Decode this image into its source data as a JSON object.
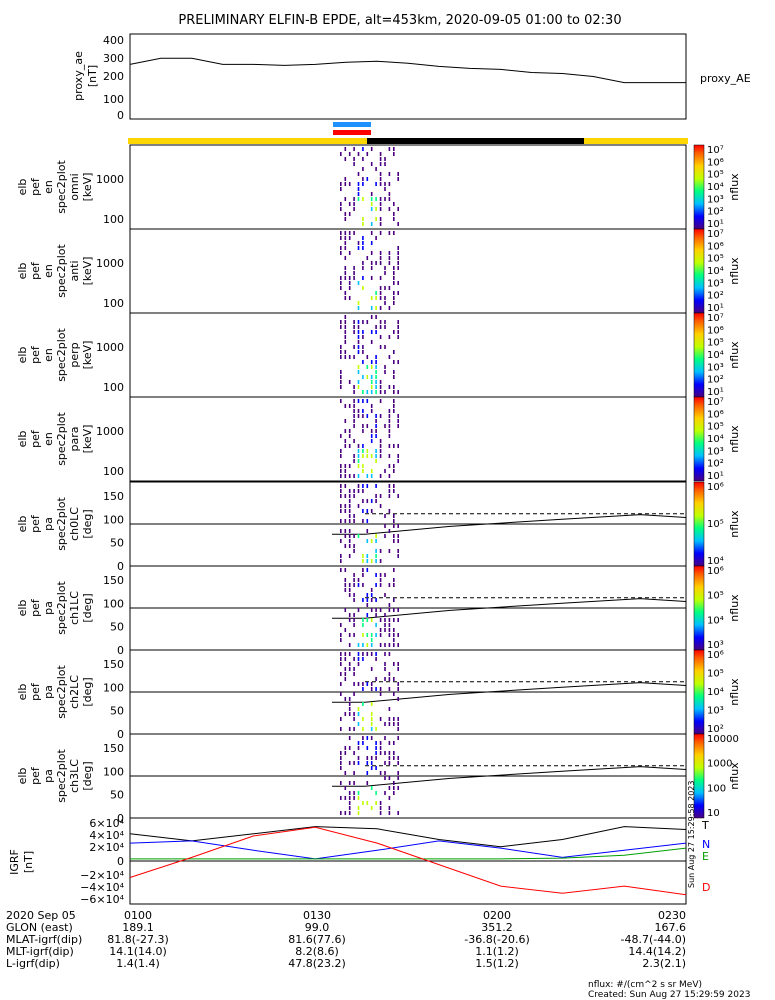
{
  "title": "PRELIMINARY ELFIN-B EPDE, alt=453km, 2020-09-05 01:00 to 02:30",
  "panels": [
    {
      "ylabel": [
        "proxy_ae",
        "[nT]"
      ],
      "ticks": [
        "400",
        "300",
        "200",
        "100",
        "0"
      ],
      "right_label": "proxy_AE"
    },
    {
      "ylabel": [
        "elb",
        "pef",
        "en",
        "spec2plot",
        "omni",
        "[keV]"
      ],
      "ticks": [
        "1000",
        "100"
      ],
      "cb_label": "nflux"
    },
    {
      "ylabel": [
        "elb",
        "pef",
        "en",
        "spec2plot",
        "anti",
        "[keV]"
      ],
      "ticks": [
        "1000",
        "100"
      ],
      "cb_label": "nflux"
    },
    {
      "ylabel": [
        "elb",
        "pef",
        "en",
        "spec2plot",
        "perp",
        "[keV]"
      ],
      "ticks": [
        "1000",
        "100"
      ],
      "cb_label": "nflux"
    },
    {
      "ylabel": [
        "elb",
        "pef",
        "en",
        "spec2plot",
        "para",
        "[keV]"
      ],
      "ticks": [
        "1000",
        "100"
      ],
      "cb_label": "nflux"
    },
    {
      "ylabel": [
        "elb",
        "pef",
        "pa",
        "spec2plot",
        "ch0LC",
        "[deg]"
      ],
      "ticks": [
        "150",
        "100",
        "50",
        "0"
      ],
      "cb_label": "nflux"
    },
    {
      "ylabel": [
        "elb",
        "pef",
        "pa",
        "spec2plot",
        "ch1LC",
        "[deg]"
      ],
      "ticks": [
        "150",
        "100",
        "50",
        "0"
      ],
      "cb_label": "nflux"
    },
    {
      "ylabel": [
        "elb",
        "pef",
        "pa",
        "spec2plot",
        "ch2LC",
        "[deg]"
      ],
      "ticks": [
        "150",
        "100",
        "50",
        "0"
      ],
      "cb_label": "nflux"
    },
    {
      "ylabel": [
        "elb",
        "pef",
        "pa",
        "spec2plot",
        "ch3LC",
        "[deg]"
      ],
      "ticks": [
        "150",
        "100",
        "50",
        "0"
      ],
      "cb_label": "nflux"
    },
    {
      "ylabel": [
        "IGRF",
        "[nT]"
      ],
      "ticks": [
        "6×10⁴",
        "4×10⁴",
        "2×10⁴",
        "0",
        "−2×10⁴",
        "−4×10⁴",
        "−6×10⁴"
      ],
      "right_labels": [
        "T",
        "N",
        "E",
        "D"
      ]
    }
  ],
  "colorbars": {
    "energy": [
      "10⁷",
      "10⁶",
      "10⁵",
      "10⁴",
      "10³",
      "10²",
      "10¹"
    ],
    "ch0": [
      "10⁶",
      "10⁵",
      "10⁴"
    ],
    "ch1": [
      "10⁶",
      "10⁵",
      "10⁴",
      "10³"
    ],
    "ch2": [
      "10⁶",
      "10⁵",
      "10⁴",
      "10³",
      "10²"
    ],
    "ch3": [
      "10000",
      "1000",
      "100",
      "10"
    ]
  },
  "side_stamp": "Sun Aug 27 15:29:58 2023",
  "footer": {
    "rows": [
      {
        "name": "2020 Sep 05",
        "vals": [
          "0100",
          "0130",
          "0200",
          "0230"
        ]
      },
      {
        "name": "GLON (east)",
        "vals": [
          "189.1",
          "99.0",
          "351.2",
          "167.6"
        ]
      },
      {
        "name": "MLAT-igrf(dip)",
        "vals": [
          "81.8(-27.3)",
          "81.6(77.6)",
          "-36.8(-20.6)",
          "-48.7(-44.0)"
        ]
      },
      {
        "name": "MLT-igrf(dip)",
        "vals": [
          "14.1(14.0)",
          "8.2(8.6)",
          "1.1(1.2)",
          "14.4(14.2)"
        ]
      },
      {
        "name": "L-igrf(dip)",
        "vals": [
          "1.4(1.4)",
          "47.8(23.2)",
          "1.5(1.2)",
          "2.3(2.1)"
        ]
      }
    ],
    "units_note": "nflux: #/(cm^2 s sr MeV)",
    "created": "Created: Sun Aug 27 15:29:59 2023"
  },
  "colors": {
    "T": "#000000",
    "N": "#0000ff",
    "E": "#00a000",
    "D": "#ff0000",
    "bar_yellow": "#ffd700",
    "bar_blue": "#1e90ff",
    "bar_red": "#ff0000"
  },
  "chart_data": {
    "type": "heatmap",
    "x_range": [
      "01:00",
      "02:30"
    ],
    "proxy_ae": {
      "x_min": [
        0,
        5,
        10,
        15,
        20,
        25,
        30,
        35,
        40,
        45,
        50,
        55,
        60,
        65,
        70,
        75,
        80,
        85,
        90
      ],
      "values": [
        270,
        300,
        300,
        270,
        270,
        265,
        270,
        280,
        285,
        275,
        260,
        250,
        245,
        230,
        225,
        210,
        180,
        180,
        180
      ]
    },
    "spectrogram_times_min": [
      34,
      44
    ],
    "energy_range_keV": [
      63,
      7000
    ],
    "pitch_angle_range_deg": [
      0,
      180
    ],
    "igrf": {
      "x_min": [
        0,
        10,
        20,
        30,
        40,
        50,
        60,
        70,
        80,
        90
      ],
      "T": [
        38000,
        28000,
        38000,
        48000,
        45000,
        30000,
        20000,
        30000,
        48000,
        44000
      ],
      "N": [
        25000,
        28000,
        15000,
        3000,
        15000,
        28000,
        18000,
        5000,
        15000,
        25000
      ],
      "E": [
        3000,
        3000,
        3000,
        3000,
        3000,
        3000,
        3000,
        4000,
        8000,
        18000
      ],
      "D": [
        -23000,
        5000,
        35000,
        47000,
        25000,
        -5000,
        -35000,
        -45000,
        -35000,
        -47000
      ]
    }
  }
}
